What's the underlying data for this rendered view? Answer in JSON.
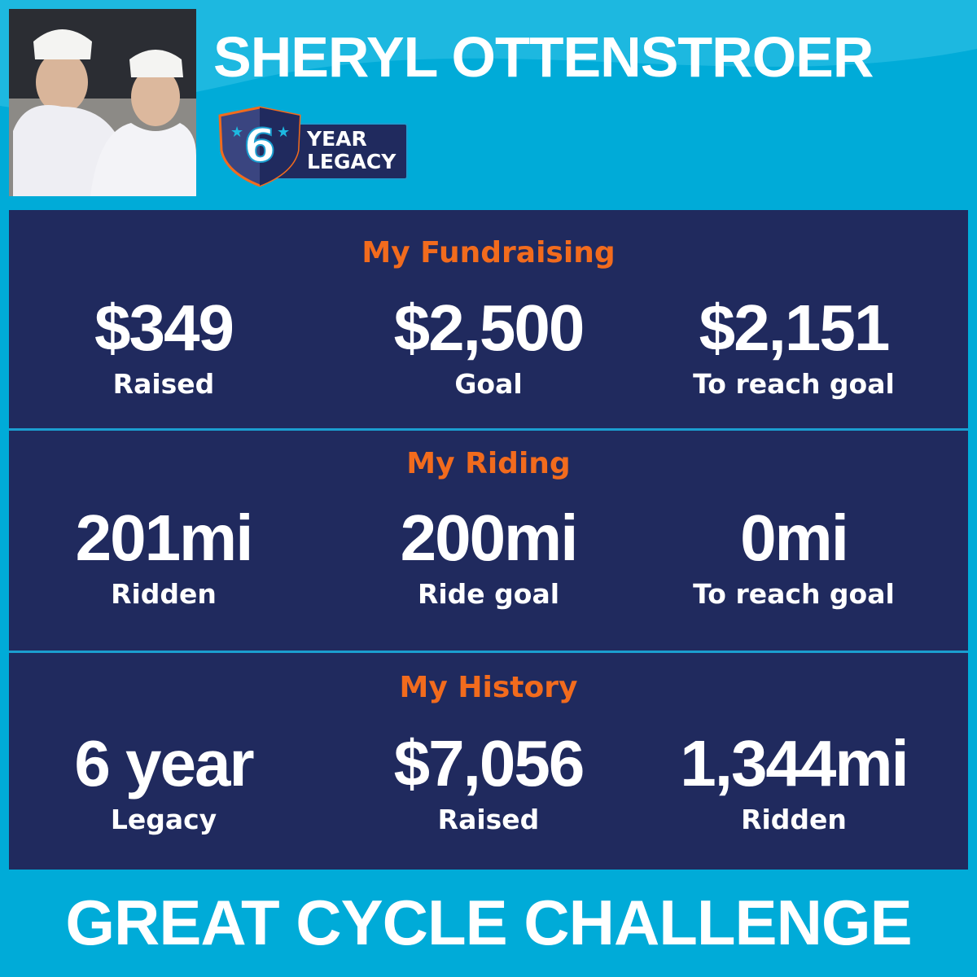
{
  "header": {
    "name": "SHERYL OTTENSTROER",
    "badge": {
      "number": "6",
      "line1": "YEAR",
      "line2": "LEGACY"
    }
  },
  "colors": {
    "background": "#00abd8",
    "panel": "#202a5e",
    "accent": "#f26b1d",
    "divider": "#1b9ed0"
  },
  "sections": [
    {
      "title": "My Fundraising",
      "stats": [
        {
          "value": "$349",
          "label": "Raised"
        },
        {
          "value": "$2,500",
          "label": "Goal"
        },
        {
          "value": "$2,151",
          "label": "To reach goal"
        }
      ]
    },
    {
      "title": "My Riding",
      "stats": [
        {
          "value": "201mi",
          "label": "Ridden"
        },
        {
          "value": "200mi",
          "label": "Ride goal"
        },
        {
          "value": "0mi",
          "label": "To reach goal"
        }
      ]
    },
    {
      "title": "My History",
      "stats": [
        {
          "value": "6 year",
          "label": "Legacy"
        },
        {
          "value": "$7,056",
          "label": "Raised"
        },
        {
          "value": "1,344mi",
          "label": "Ridden"
        }
      ]
    }
  ],
  "footer": {
    "brand": "GREAT CYCLE CHALLENGE"
  }
}
